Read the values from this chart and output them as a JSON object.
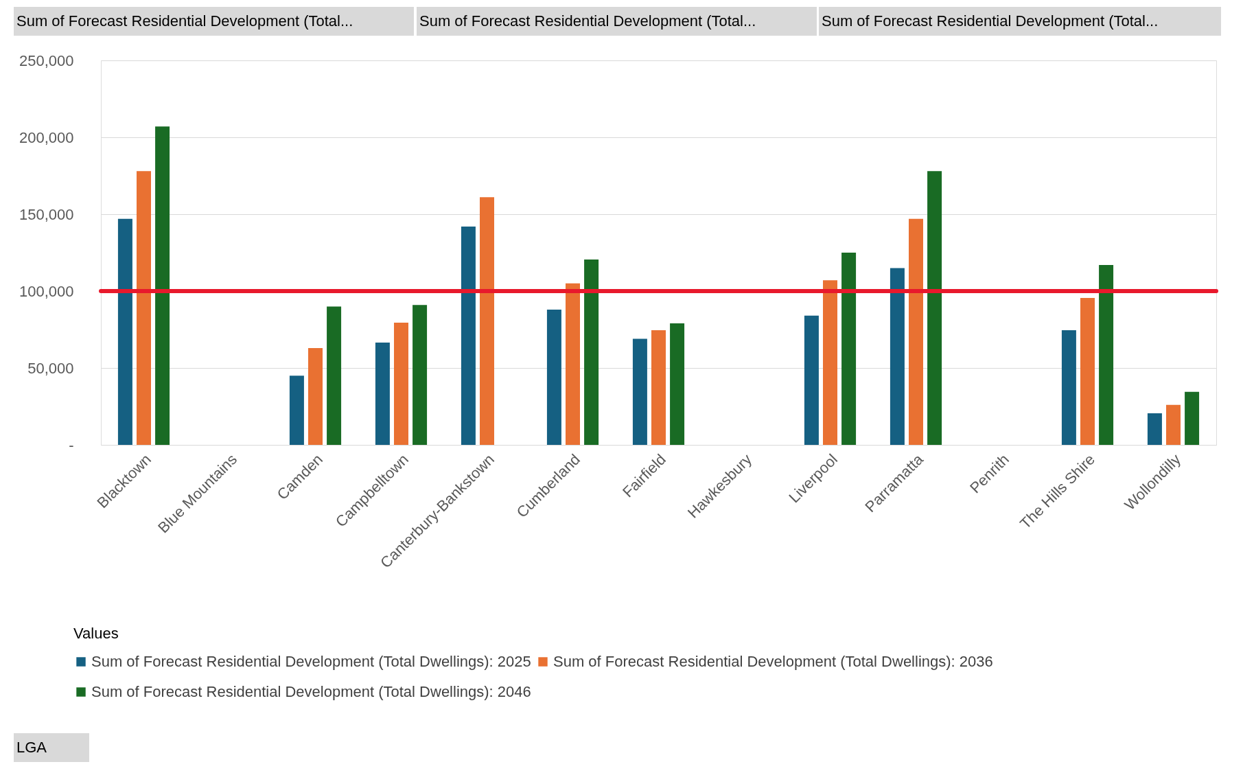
{
  "chart_data": {
    "type": "bar",
    "categories": [
      "Blacktown",
      "Blue Mountains",
      "Camden",
      "Campbelltown",
      "Canterbury-Bankstown",
      "Cumberland",
      "Fairfield",
      "Hawkesbury",
      "Liverpool",
      "Parramatta",
      "Penrith",
      "The Hills Shire",
      "Wollondilly"
    ],
    "series": [
      {
        "name": "Sum of Forecast Residential Development (Total Dwellings): 2025",
        "color": "#156082",
        "values": [
          147000,
          null,
          45000,
          66500,
          142000,
          88000,
          69000,
          null,
          84000,
          115000,
          null,
          74500,
          20500
        ]
      },
      {
        "name": "Sum of Forecast Residential Development (Total Dwellings): 2036",
        "color": "#e97132",
        "values": [
          178000,
          null,
          63000,
          79500,
          161000,
          105000,
          74500,
          null,
          107000,
          147000,
          null,
          95500,
          26000
        ]
      },
      {
        "name": "Sum of Forecast Residential Development (Total Dwellings): 2046",
        "color": "#196b24",
        "values": [
          207000,
          null,
          90000,
          91000,
          null,
          120500,
          79000,
          null,
          125000,
          178000,
          null,
          117000,
          34500
        ]
      }
    ],
    "ylim": [
      0,
      250000
    ],
    "yticks": [
      {
        "value": 0,
        "label": "-"
      },
      {
        "value": 50000,
        "label": "50,000"
      },
      {
        "value": 100000,
        "label": "100,000"
      },
      {
        "value": 150000,
        "label": "150,000"
      },
      {
        "value": 200000,
        "label": "200,000"
      },
      {
        "value": 250000,
        "label": "250,000"
      }
    ],
    "ref_lines": [
      {
        "axis": "y",
        "value": 100000,
        "color": "#e8192c"
      }
    ],
    "legend_title": "Values",
    "legend": "bottom",
    "grid": "y",
    "annotations": [
      "Sum of Forecast Residential Development (Total...",
      "Sum of Forecast Residential Development (Total...",
      "Sum of Forecast Residential Development (Total...",
      "LGA"
    ]
  }
}
